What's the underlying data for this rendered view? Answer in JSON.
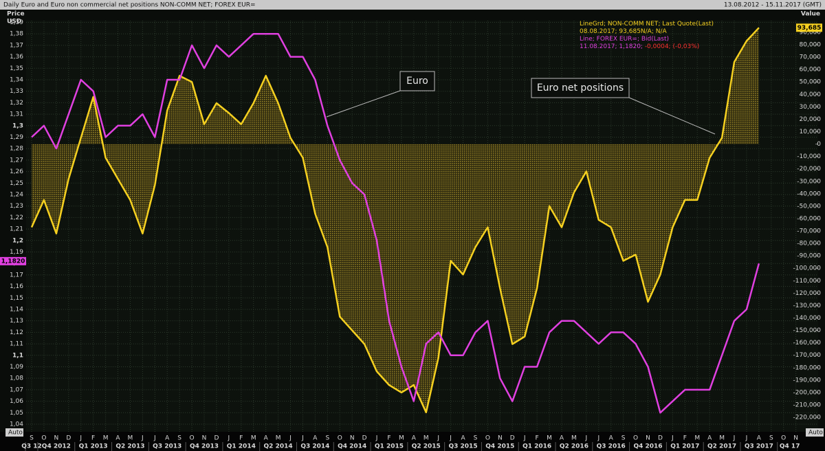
{
  "chart_data": {
    "type": "line",
    "title": "Daily Euro and Euro non commercial net positions NON-COMM NET; FOREX EUR=",
    "date_range": "13.08.2012 - 15.11.2017 (GMT)",
    "y_label": "Price",
    "y_unit": "USD",
    "y2_label": "Value",
    "scale_mode": [
      "Auto",
      "Auto"
    ],
    "categories": [
      "S",
      "O",
      "N",
      "D",
      "J",
      "F",
      "M",
      "A",
      "M",
      "J",
      "J",
      "A",
      "S",
      "O",
      "N",
      "D",
      "J",
      "F",
      "M",
      "A",
      "M",
      "J",
      "J",
      "A",
      "S",
      "O",
      "N",
      "D",
      "J",
      "F",
      "M",
      "A",
      "M",
      "J",
      "J",
      "A",
      "S",
      "O",
      "N",
      "D",
      "J",
      "F",
      "M",
      "A",
      "M",
      "J",
      "J",
      "A",
      "S",
      "O",
      "N",
      "D",
      "J",
      "F",
      "M",
      "A",
      "M",
      "J",
      "J",
      "A",
      "S",
      "O",
      "N"
    ],
    "quarters": [
      "Q3 12",
      "Q4 2012",
      "Q1 2013",
      "Q2 2013",
      "Q3 2013",
      "Q4 2013",
      "Q1 2014",
      "Q2 2014",
      "Q3 2014",
      "Q4 2014",
      "Q1 2015",
      "Q2 2015",
      "Q3 2015",
      "Q4 2015",
      "Q1 2016",
      "Q2 2016",
      "Q3 2016",
      "Q4 2016",
      "Q1 2017",
      "Q2 2017",
      "Q3 2017",
      "Q4 17"
    ],
    "series": [
      {
        "name": "Euro",
        "color": "#e040e0",
        "axis": "y",
        "values": [
          1.29,
          1.3,
          1.28,
          1.31,
          1.34,
          1.33,
          1.29,
          1.3,
          1.3,
          1.31,
          1.29,
          1.34,
          1.34,
          1.37,
          1.35,
          1.37,
          1.36,
          1.37,
          1.38,
          1.38,
          1.38,
          1.36,
          1.36,
          1.34,
          1.3,
          1.27,
          1.25,
          1.24,
          1.2,
          1.13,
          1.09,
          1.06,
          1.11,
          1.12,
          1.1,
          1.1,
          1.12,
          1.13,
          1.08,
          1.06,
          1.09,
          1.09,
          1.12,
          1.13,
          1.13,
          1.12,
          1.11,
          1.12,
          1.12,
          1.11,
          1.09,
          1.05,
          1.06,
          1.07,
          1.07,
          1.07,
          1.1,
          1.13,
          1.14,
          1.18,
          null,
          null,
          null
        ],
        "last_value": {
          "value": 1.182,
          "label": "1,1820"
        }
      },
      {
        "name": "Euro net positions",
        "color": "#f5d020",
        "axis": "y2",
        "fill": true,
        "values": [
          -67000,
          -45000,
          -72000,
          -28000,
          5000,
          38000,
          -11000,
          -28000,
          -45000,
          -72000,
          -33000,
          27000,
          55000,
          50000,
          16000,
          33000,
          25000,
          16000,
          33000,
          55000,
          33000,
          5000,
          -11000,
          -56000,
          -83000,
          -139000,
          -150000,
          -161000,
          -183000,
          -194000,
          -200000,
          -194000,
          -216000,
          -172000,
          -94000,
          -105000,
          -83000,
          -67000,
          -116000,
          -161000,
          -155000,
          -116000,
          -50000,
          -67000,
          -39000,
          -22000,
          -61000,
          -67000,
          -94000,
          -89000,
          -127000,
          -105000,
          -67000,
          -45000,
          -45000,
          -11000,
          5000,
          66000,
          83000,
          93685,
          null,
          null,
          null
        ],
        "last_value": {
          "value": 93685,
          "label": "93,685"
        }
      }
    ],
    "legend": [
      {
        "parts": [
          {
            "text": "LineGrd; NON-COMM NET; Last Quote(Last)",
            "color": "#f5d020"
          }
        ]
      },
      {
        "parts": [
          {
            "text": "08.08.2017; 93,685N/A; N/A",
            "color": "#f5d020"
          }
        ]
      },
      {
        "parts": [
          {
            "text": "Line; FOREX EUR=; Bid(Last)",
            "color": "#e040e0"
          }
        ]
      },
      {
        "parts": [
          {
            "text": "11.08.2017; 1,1820;",
            "color": "#e040e0"
          },
          {
            "text": " -0,0004; (-0,03%)",
            "color": "#ff3030"
          }
        ]
      }
    ],
    "annotations": [
      "Euro",
      "Euro net positions"
    ],
    "ylim": [
      1.0334,
      1.3915
    ],
    "yticks": [
      {
        "value": 1.04,
        "label": "1,04"
      },
      {
        "value": 1.05,
        "label": "1,05"
      },
      {
        "value": 1.06,
        "label": "1,06"
      },
      {
        "value": 1.07,
        "label": "1,07"
      },
      {
        "value": 1.08,
        "label": "1,08"
      },
      {
        "value": 1.09,
        "label": "1,09"
      },
      {
        "value": 1.1,
        "label": "1,1"
      },
      {
        "value": 1.11,
        "label": "1,11"
      },
      {
        "value": 1.12,
        "label": "1,12"
      },
      {
        "value": 1.13,
        "label": "1,13"
      },
      {
        "value": 1.14,
        "label": "1,14"
      },
      {
        "value": 1.15,
        "label": "1,15"
      },
      {
        "value": 1.16,
        "label": "1,16"
      },
      {
        "value": 1.17,
        "label": "1,17"
      },
      {
        "value": 1.18,
        "label": "1,18"
      },
      {
        "value": 1.19,
        "label": "1,19"
      },
      {
        "value": 1.2,
        "label": "1,2"
      },
      {
        "value": 1.21,
        "label": "1,21"
      },
      {
        "value": 1.22,
        "label": "1,22"
      },
      {
        "value": 1.23,
        "label": "1,23"
      },
      {
        "value": 1.24,
        "label": "1,24"
      },
      {
        "value": 1.25,
        "label": "1,25"
      },
      {
        "value": 1.26,
        "label": "1,26"
      },
      {
        "value": 1.27,
        "label": "1,27"
      },
      {
        "value": 1.28,
        "label": "1,28"
      },
      {
        "value": 1.29,
        "label": "1,29"
      },
      {
        "value": 1.3,
        "label": "1,3"
      },
      {
        "value": 1.31,
        "label": "1,31"
      },
      {
        "value": 1.32,
        "label": "1,32"
      },
      {
        "value": 1.33,
        "label": "1,33"
      },
      {
        "value": 1.34,
        "label": "1,34"
      },
      {
        "value": 1.35,
        "label": "1,35"
      },
      {
        "value": 1.36,
        "label": "1,36"
      },
      {
        "value": 1.37,
        "label": "1,37"
      },
      {
        "value": 1.38,
        "label": "1,38"
      },
      {
        "value": 1.39,
        "label": "1,39"
      }
    ],
    "y2lim": [
      -231600,
      99400
    ],
    "y2ticks": [
      {
        "value": -220000,
        "label": "-220,000"
      },
      {
        "value": -210000,
        "label": "-210,000"
      },
      {
        "value": -200000,
        "label": "-200,000"
      },
      {
        "value": -190000,
        "label": "-190,000"
      },
      {
        "value": -180000,
        "label": "-180,000"
      },
      {
        "value": -170000,
        "label": "-170,000"
      },
      {
        "value": -160000,
        "label": "-160,000"
      },
      {
        "value": -150000,
        "label": "-150,000"
      },
      {
        "value": -140000,
        "label": "-140,000"
      },
      {
        "value": -130000,
        "label": "-130,000"
      },
      {
        "value": -120000,
        "label": "-120,000"
      },
      {
        "value": -110000,
        "label": "-110,000"
      },
      {
        "value": -100000,
        "label": "-100,000"
      },
      {
        "value": -90000,
        "label": "-90,000"
      },
      {
        "value": -80000,
        "label": "-80,000"
      },
      {
        "value": -70000,
        "label": "-70,000"
      },
      {
        "value": -60000,
        "label": "-60,000"
      },
      {
        "value": -50000,
        "label": "-50,000"
      },
      {
        "value": -40000,
        "label": "-40,000"
      },
      {
        "value": -30000,
        "label": "-30,000"
      },
      {
        "value": -20000,
        "label": "-20,000"
      },
      {
        "value": -10000,
        "label": "-10,000"
      },
      0,
      {
        "value": 10000,
        "label": "10,000"
      },
      {
        "value": 20000,
        "label": "20,000"
      },
      {
        "value": 30000,
        "label": "30,000"
      },
      {
        "value": 40000,
        "label": "40,000"
      },
      {
        "value": 50000,
        "label": "50,000"
      },
      {
        "value": 60000,
        "label": "60,000"
      },
      {
        "value": 70000,
        "label": "70,000"
      },
      {
        "value": 80000,
        "label": "80,000"
      },
      {
        "value": 90000,
        "label": "90,000"
      }
    ],
    "grid": true
  }
}
